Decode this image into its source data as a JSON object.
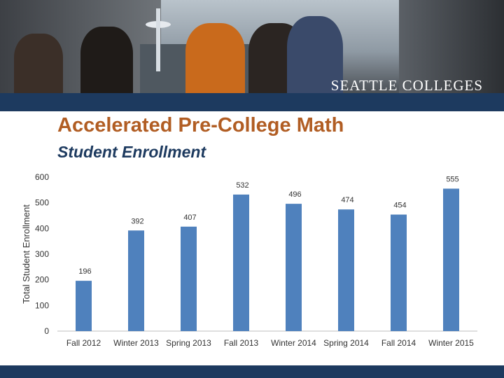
{
  "banner": {
    "brand": "SEATTLE COLLEGES"
  },
  "header": {
    "title": "Accelerated Pre-College Math",
    "subtitle": "Student Enrollment"
  },
  "chart_data": {
    "type": "bar",
    "title": "Accelerated Pre-College Math",
    "subtitle": "Student Enrollment",
    "xlabel": "",
    "ylabel": "Total Student Enrollment",
    "categories": [
      "Fall 2012",
      "Winter 2013",
      "Spring 2013",
      "Fall 2013",
      "Winter 2014",
      "Spring 2014",
      "Fall 2014",
      "Winter 2015"
    ],
    "values": [
      196,
      392,
      407,
      532,
      496,
      474,
      454,
      555
    ],
    "ylim": [
      0,
      600
    ],
    "yticks": [
      0,
      100,
      200,
      300,
      400,
      500,
      600
    ],
    "bar_color": "#4f81bd",
    "grid": false,
    "legend": "none"
  },
  "colors": {
    "title": "#b15d23",
    "subtitle": "#1d3a5f",
    "bars": "#4f81bd",
    "navy_bar": "#1d3a5f"
  }
}
